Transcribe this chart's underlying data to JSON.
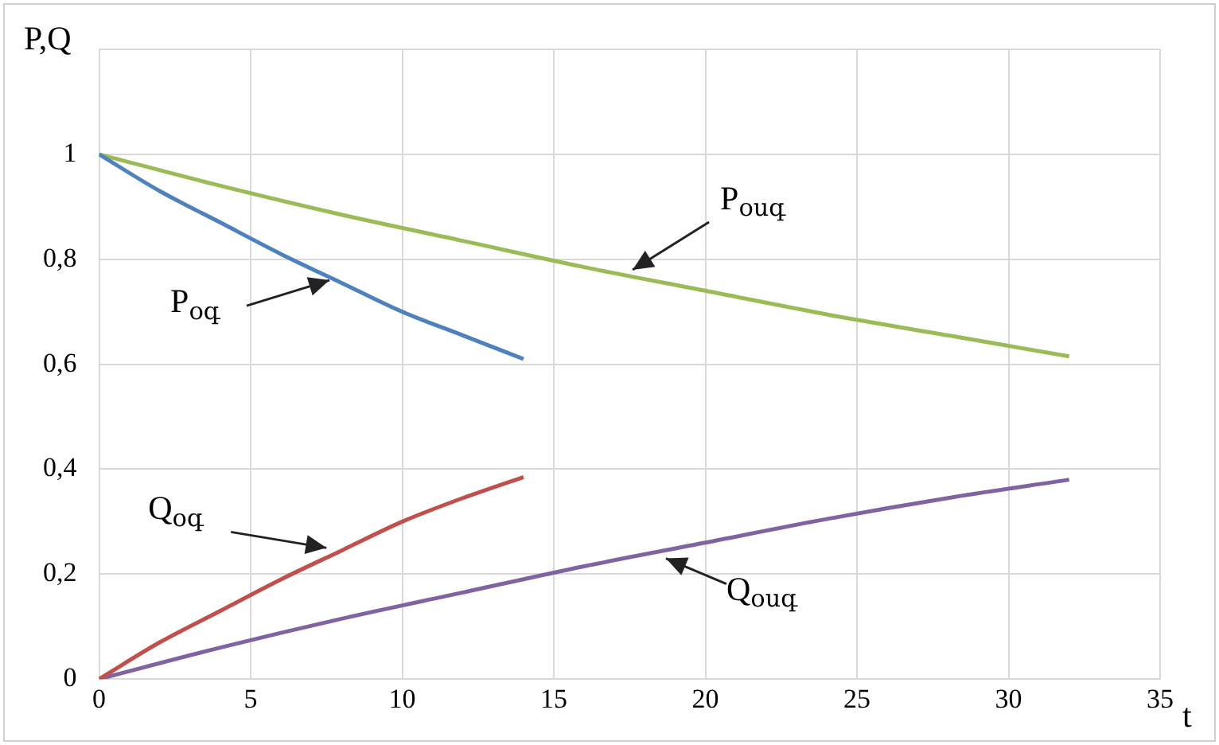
{
  "chart_data": {
    "type": "line",
    "xlabel": "t",
    "ylabel": "P,Q",
    "xlim": [
      0,
      35
    ],
    "xticks": [
      0,
      5,
      10,
      15,
      20,
      25,
      30,
      35
    ],
    "ylim": [
      0,
      1.2
    ],
    "yticks": [
      0,
      {
        "value": 0.2,
        "label": "0,2"
      },
      {
        "value": 0.4,
        "label": "0,4"
      },
      {
        "value": 0.6,
        "label": "0,6"
      },
      {
        "value": 0.8,
        "label": "0,8"
      },
      1,
      {
        "value": 1.2,
        "label": null
      }
    ],
    "grid": true,
    "legend": false,
    "marker": "none",
    "line_style": "solid",
    "series": [
      {
        "color": "#4f81bd",
        "x": [
          0,
          2,
          4,
          6,
          8,
          10,
          12,
          14
        ],
        "values": [
          1,
          0.93,
          0.87,
          0.81,
          0.755,
          0.7,
          0.655,
          0.61
        ]
      },
      {
        "color": "#9bbb59",
        "x": [
          0,
          4,
          8,
          12,
          16,
          20,
          24,
          28,
          32
        ],
        "values": [
          1,
          0.94,
          0.885,
          0.835,
          0.785,
          0.74,
          0.695,
          0.655,
          0.615
        ]
      },
      {
        "color": "#c0504d",
        "x": [
          0,
          2,
          4,
          6,
          8,
          10,
          12,
          14
        ],
        "values": [
          0,
          0.07,
          0.13,
          0.19,
          0.245,
          0.3,
          0.345,
          0.385
        ]
      },
      {
        "color": "#8064a2",
        "x": [
          0,
          4,
          8,
          12,
          16,
          20,
          24,
          28,
          32
        ],
        "values": [
          0,
          0.06,
          0.115,
          0.165,
          0.215,
          0.26,
          0.305,
          0.345,
          0.38
        ]
      }
    ],
    "annotations": [
      {
        "text": "P$_{օգ}$",
        "x": 7.6,
        "y": 0.76
      },
      {
        "text": "P$_{օսգ}$",
        "x": 17.6,
        "y": 0.78
      },
      {
        "text": "Q$_{օգ}$",
        "x": 7.5,
        "y": 0.25
      },
      {
        "text": "Q$_{օսգ}$",
        "x": 18.7,
        "y": 0.23
      }
    ]
  }
}
